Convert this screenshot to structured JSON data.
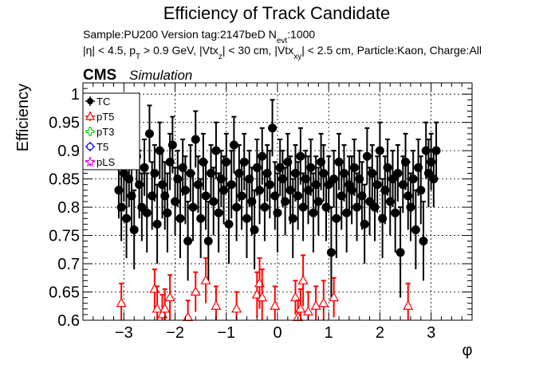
{
  "header": {
    "title": "Efficiency of Track Candidate",
    "line1_prefix": "Sample:PU200   Version tag:2147beD  N",
    "line1_sub": "evt",
    "line1_suffix": ":1000",
    "line2_a": "|η| < 4.5, p",
    "line2_sub_t": "T",
    "line2_b": " > 0.9 GeV, |Vtx",
    "line2_sub_z": "z",
    "line2_c": "| < 30 cm, |Vtx",
    "line2_sub_xy": "xy",
    "line2_d": "| < 2.5 cm, Particle:Kaon, Charge:All"
  },
  "cms": {
    "label": "CMS",
    "sublabel": "Simulation"
  },
  "colors": {
    "TC": "#000000",
    "pT5": "#ff0000",
    "pT3": "#00dd00",
    "T5": "#0000ff",
    "pLS": "#dd00dd"
  },
  "chart_data": {
    "type": "scatter",
    "xlabel": "φ",
    "ylabel": "Efficiency",
    "xlim": [
      -3.8,
      3.8
    ],
    "ylim": [
      0.6,
      1.02
    ],
    "xticks": [
      -3,
      -2,
      -1,
      0,
      1,
      2,
      3
    ],
    "xtick_labels": [
      "−3",
      "−2",
      "−1",
      "0",
      "1",
      "2",
      "3"
    ],
    "yticks": [
      0.6,
      0.65,
      0.7,
      0.75,
      0.8,
      0.85,
      0.9,
      0.95,
      1.0
    ],
    "ytick_labels": [
      "0.6",
      "0.65",
      "0.7",
      "0.75",
      "0.8",
      "0.85",
      "0.9",
      "0.95",
      "1"
    ],
    "grid": true,
    "legend_position": "top-left",
    "series": [
      {
        "name": "TC",
        "marker": "filled-circle",
        "x": [
          -3.1,
          -3.05,
          -3.0,
          -2.95,
          -2.9,
          -2.85,
          -2.8,
          -2.75,
          -2.7,
          -2.65,
          -2.6,
          -2.55,
          -2.5,
          -2.45,
          -2.4,
          -2.35,
          -2.3,
          -2.25,
          -2.2,
          -2.15,
          -2.1,
          -2.05,
          -2.0,
          -1.95,
          -1.9,
          -1.85,
          -1.8,
          -1.75,
          -1.7,
          -1.65,
          -1.6,
          -1.55,
          -1.5,
          -1.45,
          -1.4,
          -1.35,
          -1.3,
          -1.25,
          -1.2,
          -1.15,
          -1.1,
          -1.05,
          -1.0,
          -0.95,
          -0.9,
          -0.85,
          -0.8,
          -0.75,
          -0.7,
          -0.65,
          -0.6,
          -0.55,
          -0.5,
          -0.45,
          -0.4,
          -0.35,
          -0.3,
          -0.25,
          -0.2,
          -0.15,
          -0.1,
          -0.05,
          0.0,
          0.05,
          0.1,
          0.15,
          0.2,
          0.25,
          0.3,
          0.35,
          0.4,
          0.45,
          0.5,
          0.55,
          0.6,
          0.65,
          0.7,
          0.75,
          0.8,
          0.85,
          0.9,
          0.95,
          1.0,
          1.05,
          1.1,
          1.15,
          1.2,
          1.25,
          1.3,
          1.35,
          1.4,
          1.45,
          1.5,
          1.55,
          1.6,
          1.65,
          1.7,
          1.75,
          1.8,
          1.85,
          1.9,
          1.95,
          2.0,
          2.05,
          2.1,
          2.15,
          2.2,
          2.25,
          2.3,
          2.35,
          2.4,
          2.45,
          2.5,
          2.55,
          2.6,
          2.65,
          2.7,
          2.75,
          2.8,
          2.85,
          2.9,
          2.95,
          3.0,
          3.05,
          3.1
        ],
        "y": [
          0.83,
          0.8,
          0.86,
          0.78,
          0.85,
          0.82,
          0.76,
          0.89,
          0.84,
          0.8,
          0.87,
          0.79,
          0.93,
          0.82,
          0.86,
          0.77,
          0.9,
          0.84,
          0.82,
          0.79,
          0.88,
          0.91,
          0.81,
          0.85,
          0.78,
          0.87,
          0.83,
          0.74,
          0.86,
          0.8,
          0.92,
          0.84,
          0.78,
          0.88,
          0.82,
          0.74,
          0.86,
          0.81,
          0.9,
          0.79,
          0.85,
          0.83,
          0.88,
          0.77,
          0.84,
          0.91,
          0.8,
          0.86,
          0.82,
          0.88,
          0.78,
          0.85,
          0.81,
          0.76,
          0.87,
          0.83,
          0.89,
          0.8,
          0.86,
          0.84,
          0.94,
          0.82,
          0.79,
          0.87,
          0.85,
          0.81,
          0.88,
          0.83,
          0.78,
          0.86,
          0.82,
          0.89,
          0.8,
          0.85,
          0.83,
          0.87,
          0.79,
          0.84,
          0.81,
          0.88,
          0.86,
          0.8,
          0.84,
          0.72,
          0.85,
          0.78,
          0.88,
          0.82,
          0.86,
          0.79,
          0.84,
          0.83,
          0.87,
          0.8,
          0.85,
          0.82,
          0.77,
          0.89,
          0.81,
          0.86,
          0.8,
          0.84,
          0.9,
          0.78,
          0.83,
          0.87,
          0.81,
          0.85,
          0.79,
          0.86,
          0.72,
          0.84,
          0.88,
          0.82,
          0.8,
          0.85,
          0.76,
          0.87,
          0.83,
          0.74,
          0.9,
          0.86,
          0.88,
          0.85,
          0.9
        ],
        "err": [
          0.05,
          0.06,
          0.05,
          0.07,
          0.05,
          0.06,
          0.07,
          0.05,
          0.06,
          0.06,
          0.05,
          0.07,
          0.05,
          0.06,
          0.05,
          0.07,
          0.05,
          0.06,
          0.06,
          0.07,
          0.05,
          0.05,
          0.06,
          0.05,
          0.07,
          0.05,
          0.06,
          0.07,
          0.05,
          0.06,
          0.05,
          0.05,
          0.07,
          0.05,
          0.06,
          0.07,
          0.05,
          0.06,
          0.05,
          0.07,
          0.05,
          0.06,
          0.05,
          0.07,
          0.06,
          0.05,
          0.06,
          0.05,
          0.06,
          0.05,
          0.07,
          0.05,
          0.06,
          0.07,
          0.05,
          0.06,
          0.05,
          0.06,
          0.05,
          0.06,
          0.05,
          0.06,
          0.07,
          0.05,
          0.05,
          0.06,
          0.05,
          0.06,
          0.07,
          0.05,
          0.06,
          0.05,
          0.06,
          0.05,
          0.06,
          0.05,
          0.07,
          0.05,
          0.06,
          0.05,
          0.05,
          0.06,
          0.05,
          0.08,
          0.05,
          0.07,
          0.05,
          0.06,
          0.05,
          0.07,
          0.05,
          0.06,
          0.05,
          0.06,
          0.05,
          0.06,
          0.07,
          0.05,
          0.06,
          0.05,
          0.06,
          0.05,
          0.05,
          0.07,
          0.06,
          0.05,
          0.06,
          0.05,
          0.07,
          0.05,
          0.08,
          0.05,
          0.05,
          0.06,
          0.06,
          0.05,
          0.07,
          0.05,
          0.06,
          0.07,
          0.05,
          0.06,
          0.05,
          0.05,
          0.05
        ]
      },
      {
        "name": "pT5",
        "marker": "open-triangle",
        "x": [
          -3.05,
          -2.4,
          -2.35,
          -2.25,
          -2.2,
          -2.1,
          -1.75,
          -1.6,
          -1.4,
          -1.2,
          -0.8,
          -0.4,
          -0.35,
          -0.3,
          -0.05,
          0.35,
          0.4,
          0.45,
          0.5,
          0.6,
          0.75,
          0.9,
          1.1,
          2.55
        ],
        "y": [
          0.63,
          0.655,
          0.62,
          0.61,
          0.62,
          0.64,
          0.605,
          0.65,
          0.67,
          0.625,
          0.62,
          0.645,
          0.665,
          0.64,
          0.625,
          0.64,
          0.605,
          0.62,
          0.67,
          0.615,
          0.625,
          0.63,
          0.64,
          0.625
        ],
        "err": [
          0.035,
          0.035,
          0.04,
          0.035,
          0.035,
          0.04,
          0.03,
          0.035,
          0.04,
          0.035,
          0.03,
          0.04,
          0.045,
          0.05,
          0.035,
          0.03,
          0.03,
          0.035,
          0.045,
          0.035,
          0.035,
          0.04,
          0.035,
          0.04
        ]
      },
      {
        "name": "pT3",
        "marker": "open-cross",
        "x": [],
        "y": [],
        "err": []
      },
      {
        "name": "T5",
        "marker": "open-circle",
        "x": [],
        "y": [],
        "err": []
      },
      {
        "name": "pLS",
        "marker": "open-star",
        "x": [],
        "y": [],
        "err": []
      }
    ]
  }
}
